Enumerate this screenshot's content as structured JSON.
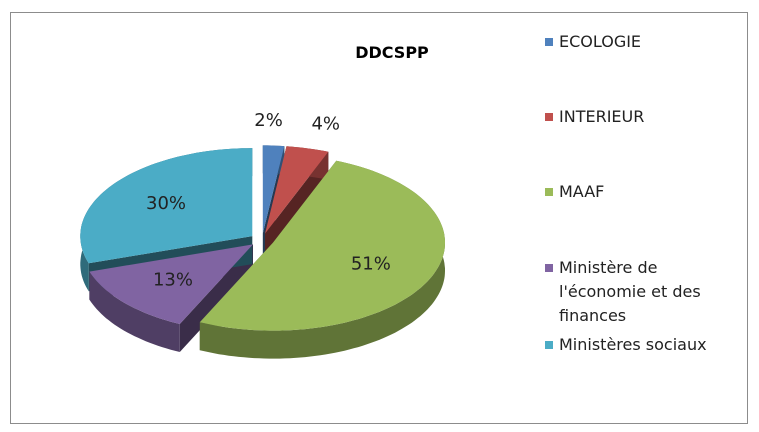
{
  "chart_data": {
    "type": "pie",
    "title": "DDCSPP",
    "categories": [
      "ECOLOGIE",
      "INTERIEUR",
      "MAAF",
      "Ministère de l'économie et des finances",
      "Ministères sociaux"
    ],
    "values": [
      2,
      4,
      51,
      13,
      30
    ],
    "value_labels": [
      "2%",
      "4%",
      "51%",
      "13%",
      "30%"
    ],
    "colors": [
      "#4f81bd",
      "#c0504d",
      "#9bbb59",
      "#8064a2",
      "#4bacc6"
    ],
    "legend": "right"
  }
}
